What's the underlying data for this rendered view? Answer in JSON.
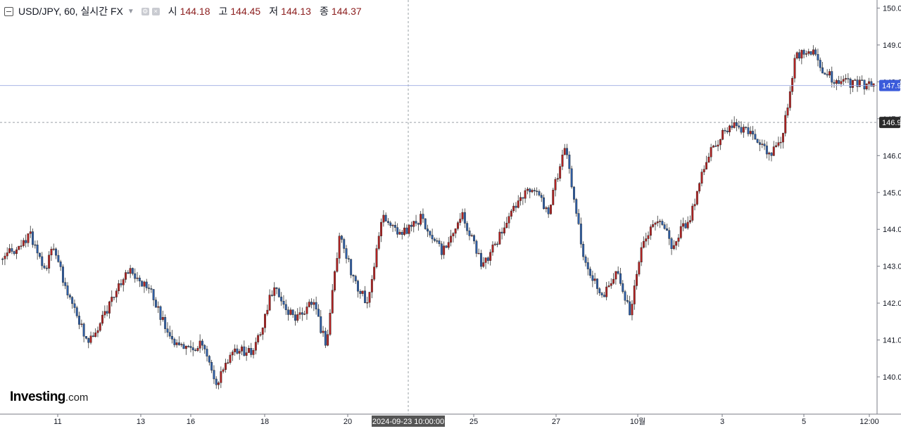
{
  "legend": {
    "symbol": "USD/JPY, 60, 실시간 FX",
    "open_label": "시",
    "open": "144.18",
    "high_label": "고",
    "high": "144.45",
    "low_label": "저",
    "low": "144.13",
    "close_label": "종",
    "close": "144.37"
  },
  "logo": {
    "brand": "Investing",
    "suffix": ".com"
  },
  "crosshair": {
    "time_label": "2024-09-23 10:00:00",
    "price_label": "146.9"
  },
  "last_price": {
    "label": "147.9"
  },
  "colors": {
    "up": "#b22222",
    "down": "#2e5fa8",
    "wick": "#333333",
    "last_price_line": "#3b5bdb",
    "crosshair": "#9aa0a6",
    "grid_axis": "#787b86"
  },
  "chart_data": {
    "type": "candlestick",
    "symbol": "USD/JPY",
    "interval": "60",
    "x_axis": {
      "tick_labels": [
        "11",
        "13",
        "16",
        "18",
        "20",
        "25",
        "27",
        "10월",
        "3",
        "5",
        "12:00"
      ]
    },
    "y_axis": {
      "position": "right",
      "range": [
        139.0,
        150.2
      ],
      "tick_labels": [
        "140.0",
        "141.0",
        "142.0",
        "143.0",
        "144.0",
        "145.0",
        "146.0",
        "147.0",
        "148.0",
        "149.0",
        "150.0"
      ]
    },
    "last_price": 147.9,
    "crosshair": {
      "price": 146.9,
      "time": "2024-09-23 10:00:00"
    },
    "anchors": [
      [
        "2024-09-09",
        143.2
      ],
      [
        "2024-09-09",
        143.8
      ],
      [
        "2024-09-10",
        142.8
      ],
      [
        "2024-09-10",
        143.6
      ],
      [
        "2024-09-11",
        142.3
      ],
      [
        "2024-09-11",
        140.9
      ],
      [
        "2024-09-12",
        141.9
      ],
      [
        "2024-09-12",
        142.9
      ],
      [
        "2024-09-13",
        142.3
      ],
      [
        "2024-09-13",
        141.0
      ],
      [
        "2024-09-16",
        140.7
      ],
      [
        "2024-09-16",
        140.9
      ],
      [
        "2024-09-16",
        139.8
      ],
      [
        "2024-09-17",
        140.8
      ],
      [
        "2024-09-17",
        140.6
      ],
      [
        "2024-09-18",
        142.5
      ],
      [
        "2024-09-18",
        141.5
      ],
      [
        "2024-09-19",
        142.0
      ],
      [
        "2024-09-19",
        140.9
      ],
      [
        "2024-09-19",
        143.9
      ],
      [
        "2024-09-20",
        142.6
      ],
      [
        "2024-09-20",
        142.0
      ],
      [
        "2024-09-20",
        144.4
      ],
      [
        "2024-09-23",
        143.8
      ],
      [
        "2024-09-23",
        144.3
      ],
      [
        "2024-09-24",
        143.4
      ],
      [
        "2024-09-24",
        144.4
      ],
      [
        "2024-09-25",
        143.0
      ],
      [
        "2024-09-25",
        144.0
      ],
      [
        "2024-09-26",
        144.9
      ],
      [
        "2024-09-26",
        145.1
      ],
      [
        "2024-09-26",
        144.5
      ],
      [
        "2024-09-27",
        146.3
      ],
      [
        "2024-09-27",
        142.9
      ],
      [
        "2024-09-30",
        142.2
      ],
      [
        "2024-09-30",
        142.8
      ],
      [
        "2024-09-30",
        141.8
      ],
      [
        "2024-10-01",
        143.7
      ],
      [
        "2024-10-01",
        144.3
      ],
      [
        "2024-10-01",
        143.6
      ],
      [
        "2024-10-02",
        144.3
      ],
      [
        "2024-10-02",
        146.2
      ],
      [
        "2024-10-03",
        146.8
      ],
      [
        "2024-10-03",
        146.6
      ],
      [
        "2024-10-04",
        146.0
      ],
      [
        "2024-10-04",
        146.5
      ],
      [
        "2024-10-04",
        148.7
      ],
      [
        "2024-10-07",
        148.9
      ],
      [
        "2024-10-07",
        148.3
      ],
      [
        "2024-10-07",
        148.0
      ],
      [
        "2024-10-08",
        147.9
      ]
    ]
  }
}
